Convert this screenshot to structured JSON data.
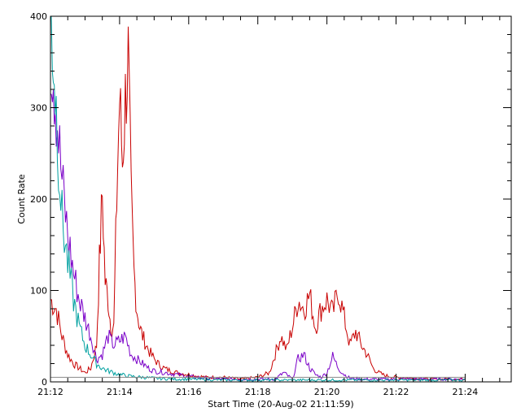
{
  "chart_data": {
    "type": "line",
    "xlabel": "Start Time (20-Aug-02 21:11:59)",
    "ylabel": "Count Rate",
    "xlim": [
      "21:12",
      "21:25:20"
    ],
    "ylim": [
      0,
      400
    ],
    "grid": false,
    "x_ticks": [
      "21:12",
      "21:14",
      "21:16",
      "21:18",
      "21:20",
      "21:22",
      "21:24"
    ],
    "y_ticks": [
      0,
      100,
      200,
      300,
      400
    ],
    "series": [
      {
        "color": "#c80000",
        "x": [
          "21:12:00",
          "21:12:10",
          "21:12:20",
          "21:12:30",
          "21:12:40",
          "21:12:50",
          "21:13:00",
          "21:13:10",
          "21:13:20",
          "21:13:25",
          "21:13:30",
          "21:13:35",
          "21:13:40",
          "21:13:45",
          "21:13:50",
          "21:13:55",
          "21:14:00",
          "21:14:05",
          "21:14:10",
          "21:14:15",
          "21:14:20",
          "21:14:25",
          "21:14:30",
          "21:14:35",
          "21:14:40",
          "21:14:50",
          "21:15:00",
          "21:15:10",
          "21:15:20",
          "21:15:40",
          "21:16:00",
          "21:16:30",
          "21:17:00",
          "21:17:30",
          "21:18:00",
          "21:18:20",
          "21:18:40",
          "21:18:50",
          "21:19:00",
          "21:19:10",
          "21:19:20",
          "21:19:30",
          "21:19:40",
          "21:19:50",
          "21:20:00",
          "21:20:10",
          "21:20:20",
          "21:20:30",
          "21:20:40",
          "21:20:50",
          "21:21:00",
          "21:21:10",
          "21:21:20",
          "21:21:30",
          "21:21:40",
          "21:22:00",
          "21:22:30",
          "21:23:00",
          "21:23:30",
          "21:24:00"
        ],
        "y": [
          90,
          80,
          50,
          30,
          20,
          15,
          10,
          15,
          40,
          130,
          205,
          110,
          90,
          60,
          60,
          200,
          310,
          240,
          310,
          355,
          200,
          120,
          80,
          60,
          50,
          35,
          25,
          18,
          14,
          10,
          8,
          5,
          5,
          3,
          5,
          10,
          50,
          35,
          60,
          90,
          80,
          95,
          60,
          80,
          90,
          75,
          100,
          70,
          40,
          55,
          40,
          30,
          15,
          10,
          7,
          5,
          4,
          3,
          3,
          3
        ]
      },
      {
        "color": "#7a00c8",
        "x": [
          "21:12:00",
          "21:12:05",
          "21:12:10",
          "21:12:20",
          "21:12:30",
          "21:12:40",
          "21:12:50",
          "21:13:00",
          "21:13:10",
          "21:13:20",
          "21:13:30",
          "21:13:40",
          "21:13:50",
          "21:14:00",
          "21:14:10",
          "21:14:20",
          "21:14:30",
          "21:14:40",
          "21:14:50",
          "21:15:00",
          "21:15:20",
          "21:15:40",
          "21:16:00",
          "21:16:30",
          "21:17:00",
          "21:17:30",
          "21:18:00",
          "21:18:30",
          "21:18:45",
          "21:19:00",
          "21:19:10",
          "21:19:20",
          "21:19:30",
          "21:19:40",
          "21:19:50",
          "21:20:00",
          "21:20:10",
          "21:20:20",
          "21:20:30",
          "21:20:40",
          "21:21:00",
          "21:21:30",
          "21:22:00",
          "21:22:30",
          "21:23:00",
          "21:24:00"
        ],
        "y": [
          370,
          340,
          300,
          220,
          160,
          120,
          90,
          70,
          50,
          25,
          30,
          50,
          40,
          45,
          50,
          30,
          25,
          20,
          15,
          12,
          10,
          8,
          6,
          4,
          3,
          3,
          3,
          3,
          10,
          3,
          25,
          30,
          15,
          8,
          5,
          10,
          28,
          15,
          8,
          4,
          3,
          3,
          3,
          3,
          3,
          3
        ]
      },
      {
        "color": "#00a0a0",
        "x": [
          "21:12:00",
          "21:12:05",
          "21:12:10",
          "21:12:20",
          "21:12:30",
          "21:12:40",
          "21:12:50",
          "21:13:00",
          "21:13:10",
          "21:13:20",
          "21:13:30",
          "21:13:40",
          "21:13:50",
          "21:14:00",
          "21:14:20",
          "21:14:40",
          "21:15:00",
          "21:15:30",
          "21:16:00",
          "21:17:00",
          "21:18:00",
          "21:19:00",
          "21:20:00",
          "21:21:00",
          "21:22:00",
          "21:23:00",
          "21:24:00"
        ],
        "y": [
          400,
          360,
          300,
          180,
          130,
          90,
          60,
          40,
          30,
          20,
          15,
          12,
          10,
          8,
          6,
          5,
          4,
          3,
          3,
          2,
          2,
          2,
          2,
          2,
          2,
          2,
          2
        ]
      }
    ],
    "reference_line": {
      "color": "#888888",
      "y": 5,
      "x_start": "21:12",
      "x_end": "21:24"
    }
  }
}
